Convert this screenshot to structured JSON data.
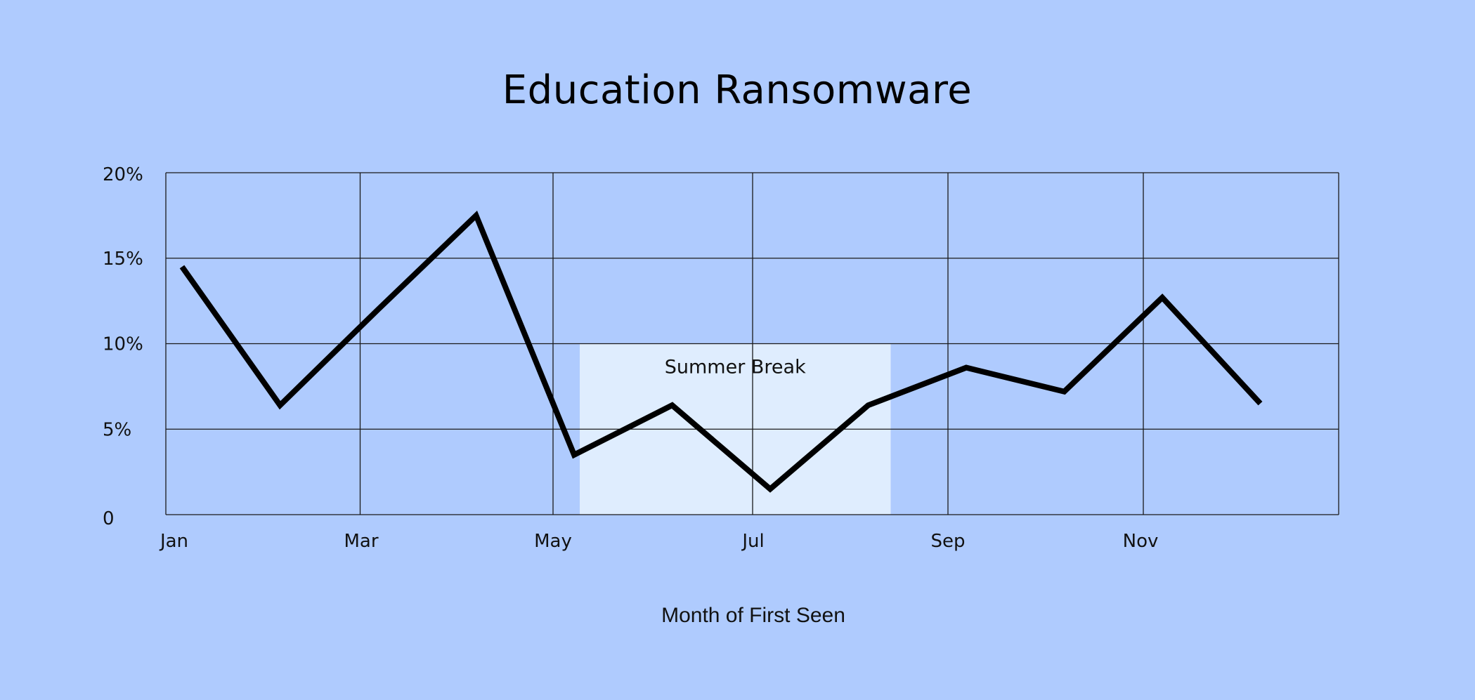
{
  "chart_data": {
    "type": "line",
    "title": "Education Ransomware",
    "xlabel": "Month of First Seen",
    "ylabel": "",
    "categories": [
      "Jan",
      "Feb",
      "Mar",
      "Apr",
      "May",
      "Jun",
      "Jul",
      "Aug",
      "Sep",
      "Oct",
      "Nov",
      "Dec"
    ],
    "x_tick_labels": [
      "Jan",
      "Mar",
      "May",
      "Jul",
      "Sep",
      "Nov"
    ],
    "y_tick_labels": [
      "0",
      "5%",
      "10%",
      "15%",
      "20%"
    ],
    "ylim": [
      0,
      20
    ],
    "grid": true,
    "series": [
      {
        "values": [
          14.5,
          6.4,
          12.0,
          17.5,
          3.5,
          6.4,
          1.5,
          6.4,
          8.6,
          7.2,
          12.7,
          6.5
        ]
      }
    ],
    "annotations": [
      {
        "label": "Summer Break",
        "x_start": "May",
        "x_end": "Aug",
        "y_range": [
          0,
          10
        ],
        "color": "#dfedfe"
      }
    ],
    "colors": {
      "background": "#afcbfe",
      "line": "#000000",
      "highlight": "#dfedfe"
    }
  }
}
